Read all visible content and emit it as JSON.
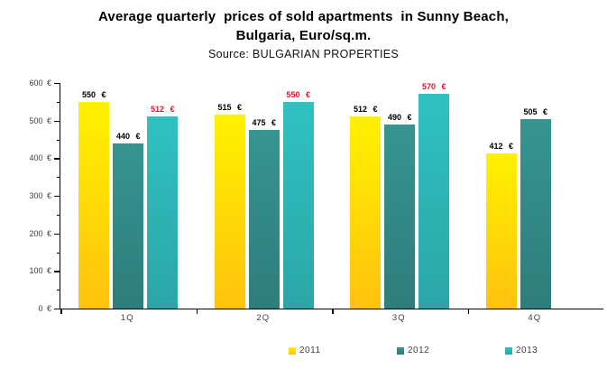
{
  "chart": {
    "title_line1": "Average quarterly  prices of sold apartments  in Sunny Beach,",
    "title_line2": "Bulgaria, Euro/sq.m.",
    "source": "Source: BULGARIAN PROPERTIES"
  },
  "chart_data": {
    "type": "bar",
    "title": "Average quarterly prices of sold apartments in Sunny Beach, Bulgaria, Euro/sq.m.",
    "subtitle": "Source: BULGARIAN PROPERTIES",
    "categories": [
      "1Q",
      "2Q",
      "3Q",
      "4Q"
    ],
    "series": [
      {
        "name": "2011",
        "values": [
          550,
          515,
          512,
          412
        ],
        "color_top": "#FFF200",
        "color_bottom": "#FFC20E",
        "label_color": "#000000"
      },
      {
        "name": "2012",
        "values": [
          440,
          475,
          490,
          505
        ],
        "color_top": "#37948F",
        "color_bottom": "#2E7D7B",
        "label_color": "#000000"
      },
      {
        "name": "2013",
        "values": [
          512,
          550,
          570,
          null
        ],
        "color_top": "#30C1C1",
        "color_bottom": "#2BA6A7",
        "label_color": "#E8112D"
      }
    ],
    "value_suffix": " €",
    "ylim": [
      0,
      600
    ],
    "y_tick_step": 100,
    "y_minor_tick_step": 50,
    "y_tick_labels": [
      "600 €",
      "500 €",
      "400 €",
      "300 €",
      "200 €",
      "100 €",
      "0 €"
    ],
    "grid": false,
    "legend_position": "bottom",
    "axis_color": "#000000",
    "tick_label_color": "#3f3f3f"
  }
}
